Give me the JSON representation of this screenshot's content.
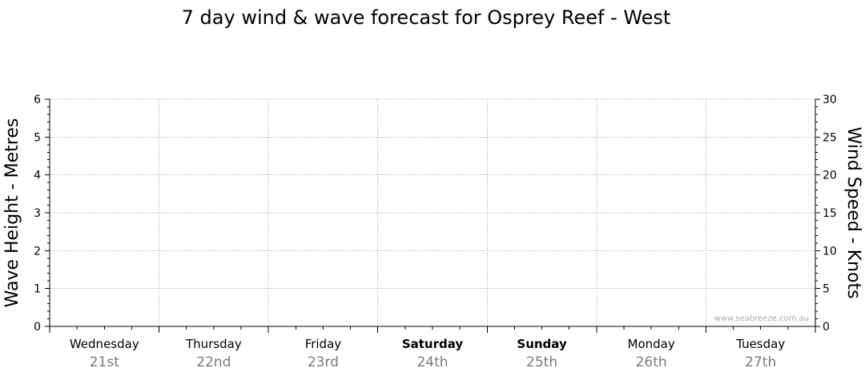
{
  "chart_data": {
    "type": "line",
    "title": "7 day wind & wave forecast for Osprey Reef - West",
    "left_axis": {
      "label": "Wave Height - Metres",
      "range": [
        0,
        6
      ],
      "ticks": [
        "0",
        "1",
        "2",
        "3",
        "4",
        "5",
        "6"
      ]
    },
    "right_axis": {
      "label": "Wind Speed - Knots",
      "range": [
        0,
        30
      ],
      "ticks": [
        "0",
        "5",
        "10",
        "15",
        "20",
        "25",
        "30"
      ]
    },
    "days": [
      {
        "name": "Wednesday",
        "date": "21st",
        "weekend": false
      },
      {
        "name": "Thursday",
        "date": "22nd",
        "weekend": false
      },
      {
        "name": "Friday",
        "date": "23rd",
        "weekend": false
      },
      {
        "name": "Saturday",
        "date": "24th",
        "weekend": true
      },
      {
        "name": "Sunday",
        "date": "25th",
        "weekend": true
      },
      {
        "name": "Monday",
        "date": "26th",
        "weekend": false
      },
      {
        "name": "Tuesday",
        "date": "27th",
        "weekend": false
      }
    ],
    "series": [],
    "grid": true,
    "watermark": "www.seabreeze.com.au"
  }
}
